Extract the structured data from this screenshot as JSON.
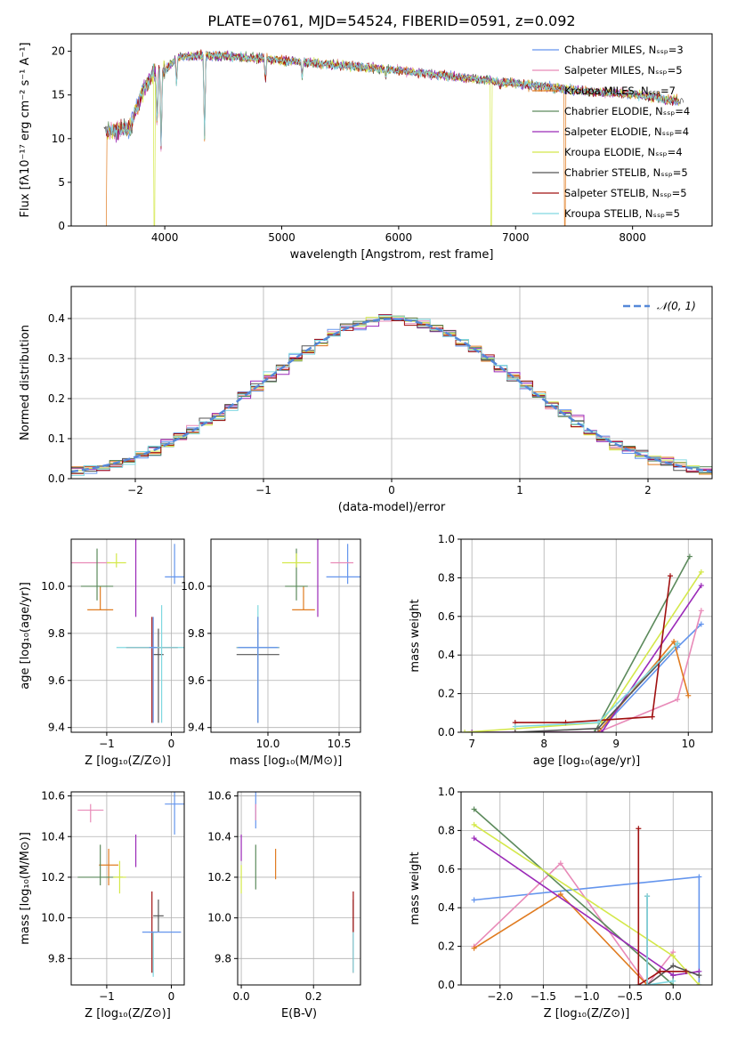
{
  "figure": {
    "title": "PLATE=0761, MJD=54524, FIBERID=0591, z=0.092"
  },
  "palette": [
    "#6495ed",
    "#e88ab8",
    "#e07b20",
    "#5c8a5c",
    "#9b2ab8",
    "#d4e84a",
    "#555555",
    "#a01010",
    "#80d8e0"
  ],
  "chart_data": [
    {
      "id": "spectrum",
      "type": "line",
      "xlabel": "wavelength [Angstrom, rest frame]",
      "ylabel": "Flux [fλ10⁻¹⁷ erg cm⁻² s⁻¹ A⁻¹]",
      "xlim": [
        3200,
        8680
      ],
      "ylim": [
        0,
        22
      ],
      "xticks": [
        4000,
        5000,
        6000,
        7000,
        8000
      ],
      "yticks": [
        0,
        5,
        10,
        15,
        20
      ],
      "grid": false,
      "legend": "top-right",
      "legend_entries": [
        "Chabrier MILES, Nₛₛₚ=3",
        "Salpeter MILES, Nₛₛₚ=5",
        "Kroupa MILES, Nₛₛₚ=7",
        "Chabrier ELODIE, Nₛₛₚ=4",
        "Salpeter ELODIE, Nₛₛₚ=4",
        "Kroupa ELODIE, Nₛₛₚ=4",
        "Chabrier STELIB, Nₛₛₚ=5",
        "Salpeter STELIB, Nₛₛₚ=5",
        "Kroupa STELIB, Nₛₛₚ=5"
      ],
      "continuum": [
        [
          3500,
          10.8
        ],
        [
          3700,
          11.2
        ],
        [
          3800,
          15.0
        ],
        [
          3900,
          17.5
        ],
        [
          4000,
          17.8
        ],
        [
          4100,
          19.3
        ],
        [
          4300,
          19.5
        ],
        [
          4500,
          19.5
        ],
        [
          4800,
          19.2
        ],
        [
          5000,
          19.0
        ],
        [
          5300,
          18.6
        ],
        [
          5600,
          18.3
        ],
        [
          6000,
          17.8
        ],
        [
          6400,
          17.2
        ],
        [
          6800,
          16.6
        ],
        [
          7200,
          16.0
        ],
        [
          7600,
          15.4
        ],
        [
          8000,
          15.1
        ],
        [
          8400,
          14.3
        ]
      ],
      "dips": [
        [
          3934,
          11.0
        ],
        [
          3969,
          8.0
        ],
        [
          4101,
          16.0
        ],
        [
          4340,
          10.0
        ],
        [
          4861,
          16.5
        ],
        [
          5175,
          17.0
        ],
        [
          5890,
          17.0
        ],
        [
          6563,
          17.4
        ],
        [
          6867,
          16.0
        ]
      ],
      "drops": [
        {
          "series": 2,
          "at": 3500,
          "value": 0
        },
        {
          "series": 5,
          "at": 3910,
          "value": 0
        },
        {
          "series": 5,
          "at": 6790,
          "value": 0
        },
        {
          "series": 2,
          "at": 7420,
          "value": 0
        }
      ],
      "data_ends": [
        3480,
        8440
      ]
    },
    {
      "id": "residuals",
      "type": "step",
      "xlabel": "(data-model)/error",
      "ylabel": "Normed distribution",
      "xlim": [
        -2.5,
        2.5
      ],
      "ylim": [
        0,
        0.48
      ],
      "xticks": [
        -2,
        -1,
        0,
        1,
        2
      ],
      "yticks": [
        0.0,
        0.1,
        0.2,
        0.3,
        0.4
      ],
      "grid": true,
      "legend": "top-right",
      "legend_entries": [
        "𝒩(0, 1)"
      ],
      "bin_width": 0.1
    },
    {
      "id": "age-vs-Z",
      "type": "errorbar",
      "xlabel": "Z [log₁₀(Z/Z⊙)]",
      "ylabel": "age  [log₁₀(age/yr)]",
      "xlim": [
        -1.55,
        0.2
      ],
      "ylim": [
        9.38,
        10.2
      ],
      "xticks": [
        -1,
        0
      ],
      "yticks": [
        9.4,
        9.6,
        9.8,
        10.0
      ],
      "grid": true,
      "points": [
        [
          0.05,
          10.04,
          0.15,
          0.03,
          0.14
        ],
        [
          -1.25,
          10.1,
          0.3,
          0.0,
          0.0
        ],
        [
          -1.1,
          9.9,
          0.2,
          0.0,
          0.1
        ],
        [
          -1.15,
          10.0,
          0.25,
          0.06,
          0.16
        ],
        [
          -0.55,
          10.1,
          0.0,
          0.23,
          0.1
        ],
        [
          -0.85,
          10.1,
          0.15,
          0.02,
          0.04
        ],
        [
          -0.2,
          9.71,
          0.08,
          0.29,
          0.11
        ],
        [
          -0.3,
          9.74,
          0.4,
          0.32,
          0.13
        ],
        [
          -0.15,
          9.74,
          0.7,
          0.32,
          0.18
        ],
        [
          -0.28,
          9.74,
          0.06,
          0.32,
          0.13
        ]
      ]
    },
    {
      "id": "age-vs-mass",
      "type": "errorbar",
      "xlabel": "mass [log₁₀(M/M⊙)]",
      "ylabel": "",
      "xlim": [
        9.6,
        10.65
      ],
      "ylim": [
        9.38,
        10.2
      ],
      "xticks": [
        10.0,
        10.5
      ],
      "yticks": [
        9.4,
        9.6,
        9.8,
        10.0
      ],
      "grid": true,
      "points": [
        [
          10.56,
          10.04,
          0.15,
          0.03,
          0.14
        ],
        [
          10.52,
          10.1,
          0.08,
          0.0,
          0.0
        ],
        [
          10.25,
          9.9,
          0.08,
          0.0,
          0.1
        ],
        [
          10.2,
          10.0,
          0.08,
          0.06,
          0.16
        ],
        [
          10.35,
          10.1,
          0.0,
          0.23,
          0.1
        ],
        [
          10.2,
          10.1,
          0.1,
          0.02,
          0.04
        ],
        [
          9.93,
          9.71,
          0.15,
          0.29,
          0.11
        ],
        [
          9.93,
          9.74,
          0.15,
          0.32,
          0.13
        ],
        [
          9.93,
          9.74,
          0.15,
          0.32,
          0.18
        ],
        [
          9.93,
          9.74,
          0.14,
          0.32,
          0.13
        ]
      ]
    },
    {
      "id": "mass-weight-vs-age",
      "type": "line",
      "xlabel": "age  [log₁₀(age/yr)]",
      "ylabel": "mass weight",
      "xlim": [
        6.85,
        10.33
      ],
      "ylim": [
        0,
        1.0
      ],
      "xticks": [
        7,
        8,
        9,
        10
      ],
      "yticks": [
        0.0,
        0.2,
        0.4,
        0.6,
        0.8,
        1.0
      ],
      "grid": true,
      "series": [
        {
          "x": [
            7.6,
            8.75,
            9.85,
            10.18
          ],
          "y": [
            0.0,
            0.0,
            0.44,
            0.56
          ]
        },
        {
          "x": [
            7.6,
            8.75,
            9.85,
            10.18
          ],
          "y": [
            0.0,
            0.0,
            0.17,
            0.63
          ]
        },
        {
          "x": [
            7.6,
            8.75,
            9.8,
            10.0
          ],
          "y": [
            0.0,
            0.0,
            0.47,
            0.19
          ]
        },
        {
          "x": [
            7.0,
            8.7,
            10.02
          ],
          "y": [
            0.0,
            0.0,
            0.91
          ]
        },
        {
          "x": [
            7.0,
            8.8,
            10.18
          ],
          "y": [
            0.0,
            0.0,
            0.76
          ]
        },
        {
          "x": [
            6.9,
            8.8,
            10.18
          ],
          "y": [
            0.0,
            0.05,
            0.83
          ]
        },
        {
          "x": [
            7.6,
            8.75,
            9.85
          ],
          "y": [
            0.0,
            0.02,
            0.46
          ]
        },
        {
          "x": [
            7.6,
            8.3,
            9.5,
            9.75
          ],
          "y": [
            0.05,
            0.05,
            0.08,
            0.81
          ]
        },
        {
          "x": [
            7.6,
            8.75,
            9.85
          ],
          "y": [
            0.03,
            0.05,
            0.46
          ]
        }
      ]
    },
    {
      "id": "mass-vs-Z",
      "type": "errorbar",
      "xlabel": "Z [log₁₀(Z/Z⊙)]",
      "ylabel": "mass [log₁₀(M/M⊙)]",
      "xlim": [
        -1.55,
        0.2
      ],
      "ylim": [
        9.67,
        10.62
      ],
      "xticks": [
        -1,
        0
      ],
      "yticks": [
        9.8,
        10.0,
        10.2,
        10.4,
        10.6
      ],
      "grid": true,
      "points": [
        [
          0.05,
          10.56,
          0.15,
          0.15,
          0.1
        ],
        [
          -1.25,
          10.53,
          0.2,
          0.06,
          0.03
        ],
        [
          -0.97,
          10.26,
          0.15,
          0.1,
          0.08
        ],
        [
          -1.1,
          10.2,
          0.35,
          0.04,
          0.16
        ],
        [
          -0.55,
          10.35,
          0.0,
          0.1,
          0.06
        ],
        [
          -0.8,
          10.2,
          0.1,
          0.08,
          0.08
        ],
        [
          -0.2,
          10.01,
          0.08,
          0.08,
          0.08
        ],
        [
          -0.3,
          9.93,
          0.0,
          0.2,
          0.2
        ],
        [
          -0.28,
          9.93,
          0.06,
          0.22,
          0.0
        ],
        [
          -0.15,
          9.93,
          0.3,
          0.0,
          0.0
        ]
      ]
    },
    {
      "id": "mass-vs-EBV",
      "type": "errorbar",
      "xlabel": "E(B-V)",
      "ylabel": "",
      "xlim": [
        -0.01,
        0.33
      ],
      "ylim": [
        9.67,
        10.62
      ],
      "xticks": [
        0.0,
        0.2
      ],
      "yticks": [
        9.8,
        10.0,
        10.2,
        10.4,
        10.6
      ],
      "grid": true,
      "points": [
        [
          0.04,
          10.56,
          0.0,
          0.12,
          0.12
        ],
        [
          0.04,
          10.53,
          0.0,
          0.05,
          0.03
        ],
        [
          0.095,
          10.26,
          0.0,
          0.07,
          0.08
        ],
        [
          0.04,
          10.2,
          0.0,
          0.06,
          0.16
        ],
        [
          0.0,
          10.35,
          0.0,
          0.07,
          0.06
        ],
        [
          0.0,
          10.2,
          0.0,
          0.08,
          0.06
        ],
        [
          0.31,
          10.01,
          0.0,
          0.08,
          0.08
        ],
        [
          0.31,
          9.93,
          0.0,
          0.2,
          0.2
        ],
        [
          0.31,
          9.93,
          0.0,
          0.2,
          0.0
        ],
        [
          0.31,
          9.93,
          0.0,
          0.0,
          0.0
        ]
      ]
    },
    {
      "id": "mass-weight-vs-Z",
      "type": "line",
      "xlabel": "Z [log₁₀(Z/Z⊙)]",
      "ylabel": "mass weight",
      "xlim": [
        -2.45,
        0.45
      ],
      "ylim": [
        0,
        1.0
      ],
      "xticks": [
        -2.0,
        -1.5,
        -1.0,
        -0.5,
        0.0
      ],
      "yticks": [
        0.0,
        0.2,
        0.4,
        0.6,
        0.8,
        1.0
      ],
      "grid": true,
      "series": [
        {
          "x": [
            -2.3,
            0.3,
            0.3
          ],
          "y": [
            0.44,
            0.56,
            0.0
          ]
        },
        {
          "x": [
            -2.3,
            -1.3,
            -0.3,
            0.0
          ],
          "y": [
            0.2,
            0.63,
            0.0,
            0.17
          ]
        },
        {
          "x": [
            -2.3,
            -1.3,
            -0.3,
            0.0
          ],
          "y": [
            0.19,
            0.47,
            0.0,
            0.0
          ]
        },
        {
          "x": [
            -2.3,
            0.0,
            0.0
          ],
          "y": [
            0.91,
            0.0,
            0.05
          ]
        },
        {
          "x": [
            -2.3,
            0.0,
            0.3
          ],
          "y": [
            0.76,
            0.05,
            0.07
          ]
        },
        {
          "x": [
            -2.3,
            0.0,
            0.3
          ],
          "y": [
            0.83,
            0.15,
            0.0
          ]
        },
        {
          "x": [
            -0.3,
            -0.3,
            0.0,
            0.3
          ],
          "y": [
            0.46,
            0.0,
            0.1,
            0.05
          ]
        },
        {
          "x": [
            -0.4,
            -0.4,
            -0.15,
            0.15
          ],
          "y": [
            0.81,
            0.0,
            0.07,
            0.07
          ]
        },
        {
          "x": [
            -0.3,
            -0.3,
            0.0
          ],
          "y": [
            0.46,
            0.0,
            0.02
          ]
        }
      ]
    }
  ]
}
